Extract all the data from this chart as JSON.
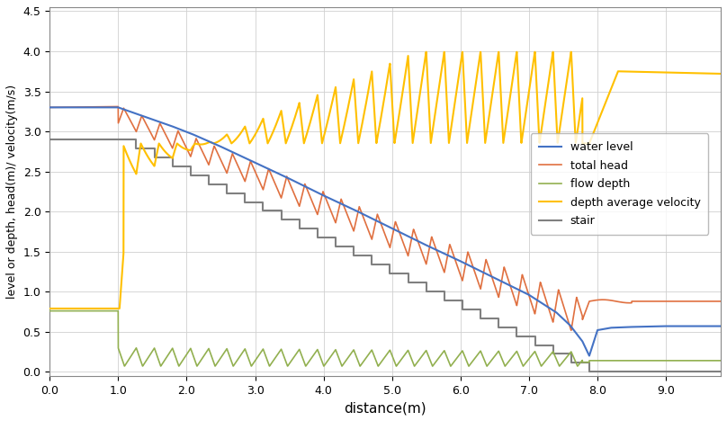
{
  "title": "",
  "xlabel": "distance(m)",
  "ylabel": "level or depth, head(m)/ velocity(m/s)",
  "xlim": [
    0.0,
    9.8
  ],
  "ylim": [
    -0.05,
    4.55
  ],
  "yticks": [
    0.0,
    0.5,
    1.0,
    1.5,
    2.0,
    2.5,
    3.0,
    3.5,
    4.0,
    4.5
  ],
  "xticks": [
    0.0,
    1.0,
    2.0,
    3.0,
    4.0,
    5.0,
    6.0,
    7.0,
    8.0,
    9.0
  ],
  "colors": {
    "water_level": "#4472c4",
    "total_head": "#e07040",
    "flow_depth": "#92b050",
    "velocity": "#ffc000",
    "stair": "#808080"
  },
  "legend_labels": [
    "water level",
    "total head",
    "flow depth",
    "depth average velocity",
    "stair"
  ],
  "n_stairs": 26,
  "stair_x_start": 1.0,
  "stair_x_end": 7.88,
  "stair_y_start": 2.9,
  "stair_y_end": 0.0,
  "pool_x_end": 9.8
}
